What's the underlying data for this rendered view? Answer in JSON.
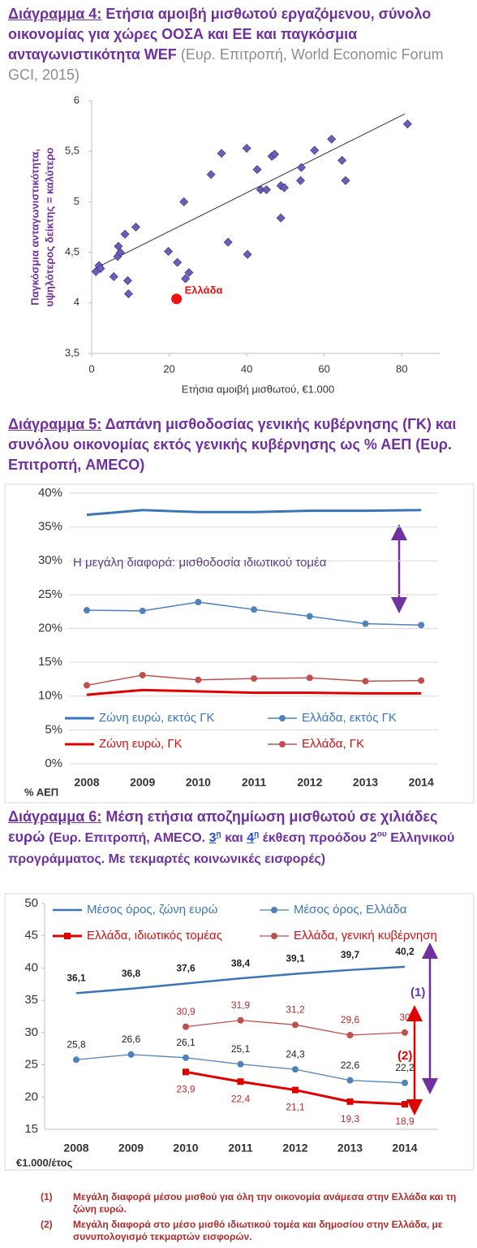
{
  "chart_data": [
    {
      "type": "scatter",
      "label": "Διάγραμμα 4:",
      "title": "Ετήσια αμοιβή μισθωτού εργαζόμενου, σύνολο οικονομίας για χώρες ΟΟΣΑ και ΕΕ και παγκόσμια ανταγωνιστικότητα WEF",
      "source": "(Ευρ. Επιτροπή,  World Economic Forum GCI, 2015)",
      "xlabel": "Ετήσια αμοιβή μισθωτού, €1.000",
      "ylabel": [
        "Παγκόσμια ανταγωνιστικότητα,",
        "υψηλότερος δείκτης = καλύτερο"
      ],
      "x": [
        1.1,
        1.9,
        2.3,
        5.7,
        6.7,
        6.9,
        7.4,
        8.6,
        9.3,
        9.5,
        11.4,
        19.8,
        22.1,
        23.8,
        24.2,
        25.1,
        30.8,
        33.5,
        35.2,
        40.0,
        40.2,
        42.7,
        43.6,
        45.1,
        46.5,
        47.2,
        48.8,
        49.7,
        48.8,
        54.1,
        53.9,
        57.5,
        61.9,
        64.6,
        65.5,
        81.5
      ],
      "y": [
        4.31,
        4.37,
        4.34,
        4.26,
        4.46,
        4.56,
        4.5,
        4.68,
        4.22,
        4.09,
        4.75,
        4.51,
        4.4,
        5.0,
        4.24,
        4.3,
        5.27,
        5.48,
        4.6,
        5.53,
        4.48,
        5.32,
        5.12,
        5.12,
        5.45,
        5.47,
        5.16,
        5.14,
        4.84,
        5.34,
        5.21,
        5.51,
        5.62,
        5.41,
        5.21,
        5.77
      ],
      "color": "#6a5fb8",
      "highlight": {
        "name": "Ελλάδα",
        "x": 21.9,
        "y": 4.04,
        "color": "#ee1111"
      },
      "trendline": {
        "x": [
          0.8,
          80.8
        ],
        "y": [
          4.34,
          5.87
        ],
        "color": "#333333"
      },
      "xlim": [
        0,
        90
      ],
      "xticks": [
        0,
        20,
        40,
        60,
        80
      ],
      "ylim": [
        3.5,
        6
      ],
      "yticks": [
        {
          "value": 3.5,
          "label": "3,5"
        },
        4,
        {
          "value": 4.5,
          "label": "4,5"
        },
        5,
        {
          "value": 5.5,
          "label": "5,5"
        },
        6
      ]
    },
    {
      "type": "line",
      "label": "Διάγραμμα 5:",
      "title": "Δαπάνη μισθοδοσίας γενικής κυβέρνησης (ΓΚ) και συνόλου οικονομίας εκτός γενικής κυβέρνησης ως % ΑΕΠ",
      "source": "(Ευρ. Επιτροπή, AMECO)",
      "unit": "% ΑΕΠ",
      "annotation": "Η μεγάλη διαφορά:  μισθοδοσία  ιδιωτικού τομέα",
      "categories": [
        "2008",
        "2009",
        "2010",
        "2011",
        "2012",
        "2013",
        "2014"
      ],
      "series": [
        {
          "name": "Ζώνη ευρώ, εκτός ΓΚ",
          "color": "#3a75b8",
          "line_width": 3,
          "values": [
            36.8,
            37.5,
            37.2,
            37.2,
            37.4,
            37.4,
            37.5
          ]
        },
        {
          "name": "Ελλάδα, εκτός ΓΚ",
          "color": "#4f81bd",
          "line_width": 1.5,
          "marker": "circle",
          "values": [
            22.7,
            22.6,
            23.9,
            22.8,
            21.8,
            20.7,
            20.5
          ]
        },
        {
          "name": "Ζώνη ευρώ, ΓΚ",
          "color": "#e00000",
          "line_width": 3,
          "values": [
            10.2,
            10.9,
            10.7,
            10.5,
            10.5,
            10.4,
            10.4
          ]
        },
        {
          "name": "Ελλάδα, ΓΚ",
          "color": "#c0504d",
          "line_width": 1.5,
          "marker": "circle",
          "values": [
            11.6,
            13.1,
            12.4,
            12.6,
            12.7,
            12.2,
            12.3
          ]
        }
      ],
      "ylim": [
        0,
        40
      ],
      "yticks": [
        {
          "value": 0,
          "label": "0%"
        },
        {
          "value": 5,
          "label": "5%"
        },
        {
          "value": 10,
          "label": "10%"
        },
        {
          "value": 15,
          "label": "15%"
        },
        {
          "value": 20,
          "label": "20%"
        },
        {
          "value": 25,
          "label": "25%"
        },
        {
          "value": 30,
          "label": "30%"
        },
        {
          "value": 35,
          "label": "35%"
        },
        {
          "value": 40,
          "label": "40%"
        }
      ],
      "grid": true
    },
    {
      "type": "line",
      "label": "Διάγραμμα 6:",
      "title": "Μέση ετήσια αποζημίωση μισθωτού σε χιλιάδες ευρώ",
      "source_parts": [
        "(Ευρ. Επιτροπή, AMECO.",
        "3",
        "η",
        "και",
        "4",
        "η",
        "έκθεση προόδου 2",
        "ου",
        "Ελληνικού προγράμματος. Με τεκμαρτές κοινωνικές εισφορές)"
      ],
      "unit": "€1.000/έτος",
      "annotations": [
        "(1)",
        "(2)"
      ],
      "categories": [
        "2008",
        "2009",
        "2010",
        "2011",
        "2012",
        "2013",
        "2014"
      ],
      "series": [
        {
          "name": "Μέσος όρος, ζώνη ευρώ",
          "color": "#3a75b8",
          "line_width": 2.5,
          "label_position": "above",
          "label_color": "#222222",
          "values": [
            36.1,
            36.8,
            37.6,
            38.4,
            39.1,
            39.7,
            40.2
          ],
          "value_labels": [
            "36,1",
            "36,8",
            "37,6",
            "38,4",
            "39,1",
            "39,7",
            "40,2"
          ]
        },
        {
          "name": "Μέσος όρος, Ελλάδα",
          "color": "#4f81bd",
          "line_width": 1.3,
          "marker": "circle",
          "label_position": "above",
          "label_color": "#222222",
          "values": [
            25.8,
            26.6,
            26.1,
            25.1,
            24.3,
            22.6,
            22.2
          ],
          "value_labels": [
            "25,8",
            "26,6",
            "26,1",
            "25,1",
            "24,3",
            "22,6",
            "22,2"
          ]
        },
        {
          "name": "Ελλάδα, ιδιωτικός τομέας",
          "color": "#e00000",
          "line_width": 3,
          "marker": "square",
          "label_position": "below",
          "label_color": "#c0272d",
          "values": [
            null,
            null,
            23.9,
            22.4,
            21.1,
            19.3,
            18.9
          ],
          "value_labels": [
            null,
            null,
            "23,9",
            "22,4",
            "21,1",
            "19,3",
            "18,9"
          ]
        },
        {
          "name": "Ελλάδα, γενική κυβέρνηση",
          "color": "#c0504d",
          "line_width": 1.3,
          "marker": "circle",
          "label_position": "above",
          "label_color": "#c0272d",
          "values": [
            null,
            null,
            30.9,
            31.9,
            31.2,
            29.6,
            30
          ],
          "value_labels": [
            null,
            null,
            "30,9",
            "31,9",
            "31,2",
            "29,6",
            "30"
          ]
        }
      ],
      "ylim": [
        15,
        50
      ],
      "yticks": [
        15,
        20,
        25,
        30,
        35,
        40,
        45,
        50
      ],
      "grid": false
    }
  ],
  "notes": [
    {
      "marker": "(1)",
      "text": "Μεγάλη διαφορά μέσου μισθού για όλη την οικονομία ανάμεσα στην Ελλάδα και τη ζώνη ευρώ."
    },
    {
      "marker": "(2)",
      "text": "Μεγάλη διαφορά στο μέσο μισθό ιδιωτικού τομέα και δημοσίου στην Ελλάδα, με συνυπολογισμό τεκμαρτών εισφορών."
    }
  ]
}
